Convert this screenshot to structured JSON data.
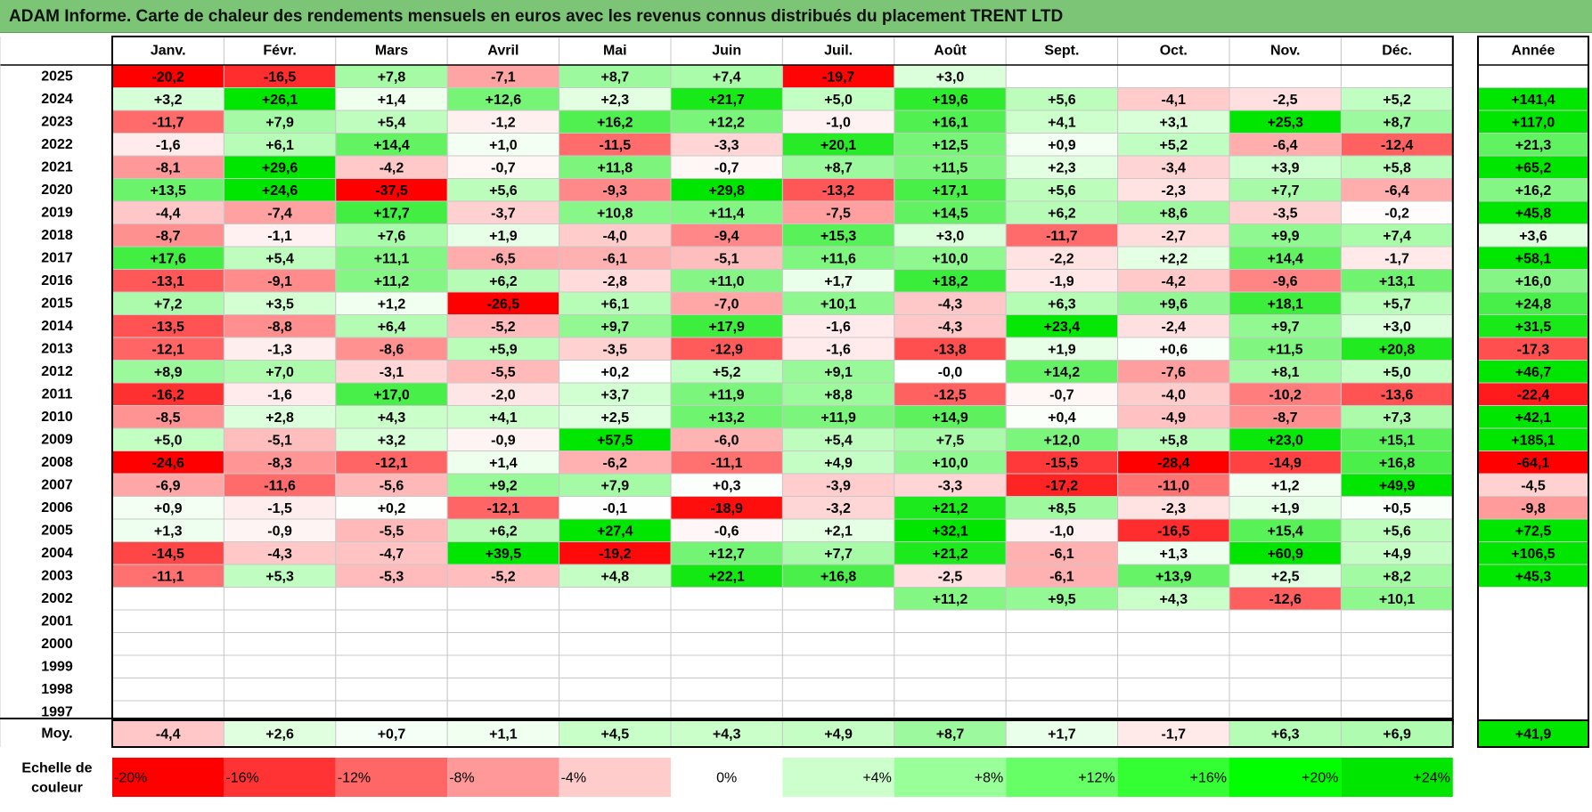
{
  "title": "ADAM Informe. Carte de chaleur des rendements mensuels en euros avec les revenus connus distribués du placement TRENT LTD",
  "chart_data": {
    "type": "heatmap",
    "title": "ADAM Informe. Carte de chaleur des rendements mensuels en euros avec les revenus connus distribués du placement TRENT LTD",
    "columns": [
      "Janv.",
      "Févr.",
      "Mars",
      "Avril",
      "Mai",
      "Juin",
      "Juil.",
      "Août",
      "Sept.",
      "Oct.",
      "Nov.",
      "Déc."
    ],
    "annual_header": "Année",
    "rows": [
      {
        "year": "2025",
        "values": [
          "-20,2",
          "-16,5",
          "+7,8",
          "-7,1",
          "+8,7",
          "+7,4",
          "-19,7",
          "+3,0",
          "",
          "",
          "",
          ""
        ],
        "annual": ""
      },
      {
        "year": "2024",
        "values": [
          "+3,2",
          "+26,1",
          "+1,4",
          "+12,6",
          "+2,3",
          "+21,7",
          "+5,0",
          "+19,6",
          "+5,6",
          "-4,1",
          "-2,5",
          "+5,2"
        ],
        "annual": "+141,4"
      },
      {
        "year": "2023",
        "values": [
          "-11,7",
          "+7,9",
          "+5,4",
          "-1,2",
          "+16,2",
          "+12,2",
          "-1,0",
          "+16,1",
          "+4,1",
          "+3,1",
          "+25,3",
          "+8,7"
        ],
        "annual": "+117,0"
      },
      {
        "year": "2022",
        "values": [
          "-1,6",
          "+6,1",
          "+14,4",
          "+1,0",
          "-11,5",
          "-3,3",
          "+20,1",
          "+12,5",
          "+0,9",
          "+5,2",
          "-6,4",
          "-12,4"
        ],
        "annual": "+21,3"
      },
      {
        "year": "2021",
        "values": [
          "-8,1",
          "+29,6",
          "-4,2",
          "-0,7",
          "+11,8",
          "-0,7",
          "+8,7",
          "+11,5",
          "+2,3",
          "-3,4",
          "+3,9",
          "+5,8"
        ],
        "annual": "+65,2"
      },
      {
        "year": "2020",
        "values": [
          "+13,5",
          "+24,6",
          "-37,5",
          "+5,6",
          "-9,3",
          "+29,8",
          "-13,2",
          "+17,1",
          "+5,6",
          "-2,3",
          "+7,7",
          "-6,4"
        ],
        "annual": "+16,2"
      },
      {
        "year": "2019",
        "values": [
          "-4,4",
          "-7,4",
          "+17,7",
          "-3,7",
          "+10,8",
          "+11,4",
          "-7,5",
          "+14,5",
          "+6,2",
          "+8,6",
          "-3,5",
          "-0,2"
        ],
        "annual": "+45,8"
      },
      {
        "year": "2018",
        "values": [
          "-8,7",
          "-1,1",
          "+7,6",
          "+1,9",
          "-4,0",
          "-9,4",
          "+15,3",
          "+3,0",
          "-11,7",
          "-2,7",
          "+9,9",
          "+7,4"
        ],
        "annual": "+3,6"
      },
      {
        "year": "2017",
        "values": [
          "+17,6",
          "+5,4",
          "+11,1",
          "-6,5",
          "-6,1",
          "-5,1",
          "+11,6",
          "+10,0",
          "-2,2",
          "+2,2",
          "+14,4",
          "-1,7"
        ],
        "annual": "+58,1"
      },
      {
        "year": "2016",
        "values": [
          "-13,1",
          "-9,1",
          "+11,2",
          "+6,2",
          "-2,8",
          "+11,0",
          "+1,7",
          "+18,2",
          "-1,9",
          "-4,2",
          "-9,6",
          "+13,1"
        ],
        "annual": "+16,0"
      },
      {
        "year": "2015",
        "values": [
          "+7,2",
          "+3,5",
          "+1,2",
          "-26,5",
          "+6,1",
          "-7,0",
          "+10,1",
          "-4,3",
          "+6,3",
          "+9,6",
          "+18,1",
          "+5,7"
        ],
        "annual": "+24,8"
      },
      {
        "year": "2014",
        "values": [
          "-13,5",
          "-8,8",
          "+6,4",
          "-5,2",
          "+9,7",
          "+17,9",
          "-1,6",
          "-4,3",
          "+23,4",
          "-2,4",
          "+9,7",
          "+3,0"
        ],
        "annual": "+31,5"
      },
      {
        "year": "2013",
        "values": [
          "-12,1",
          "-1,3",
          "-8,6",
          "+5,9",
          "-3,5",
          "-12,9",
          "-1,6",
          "-13,8",
          "+1,9",
          "+0,6",
          "+11,5",
          "+20,8"
        ],
        "annual": "-17,3"
      },
      {
        "year": "2012",
        "values": [
          "+8,9",
          "+7,0",
          "-3,1",
          "-5,5",
          "+0,2",
          "+5,2",
          "+9,1",
          "-0,0",
          "+14,2",
          "-7,6",
          "+8,1",
          "+5,0"
        ],
        "annual": "+46,7"
      },
      {
        "year": "2011",
        "values": [
          "-16,2",
          "-1,6",
          "+17,0",
          "-2,0",
          "+3,7",
          "+11,9",
          "+8,8",
          "-12,5",
          "-0,7",
          "-4,0",
          "-10,2",
          "-13,6"
        ],
        "annual": "-22,4"
      },
      {
        "year": "2010",
        "values": [
          "-8,5",
          "+2,8",
          "+4,3",
          "+4,1",
          "+2,5",
          "+13,2",
          "+11,9",
          "+14,9",
          "+0,4",
          "-4,9",
          "-8,7",
          "+7,3"
        ],
        "annual": "+42,1"
      },
      {
        "year": "2009",
        "values": [
          "+5,0",
          "-5,1",
          "+3,2",
          "-0,9",
          "+57,5",
          "-6,0",
          "+5,4",
          "+7,5",
          "+12,0",
          "+5,8",
          "+23,0",
          "+15,1"
        ],
        "annual": "+185,1"
      },
      {
        "year": "2008",
        "values": [
          "-24,6",
          "-8,3",
          "-12,1",
          "+1,4",
          "-6,2",
          "-11,1",
          "+4,9",
          "+10,0",
          "-15,5",
          "-28,4",
          "-14,9",
          "+16,8"
        ],
        "annual": "-64,1"
      },
      {
        "year": "2007",
        "values": [
          "-6,9",
          "-11,6",
          "-5,6",
          "+9,2",
          "+7,9",
          "+0,3",
          "-3,9",
          "-3,3",
          "-17,2",
          "-11,0",
          "+1,2",
          "+49,9"
        ],
        "annual": "-4,5"
      },
      {
        "year": "2006",
        "values": [
          "+0,9",
          "-1,5",
          "+0,2",
          "-12,1",
          "-0,1",
          "-18,9",
          "-3,2",
          "+21,2",
          "+8,5",
          "-2,3",
          "+1,9",
          "+0,5"
        ],
        "annual": "-9,8"
      },
      {
        "year": "2005",
        "values": [
          "+1,3",
          "-0,9",
          "-5,5",
          "+6,2",
          "+27,4",
          "-0,6",
          "+2,1",
          "+32,1",
          "-1,0",
          "-16,5",
          "+15,4",
          "+5,6"
        ],
        "annual": "+72,5"
      },
      {
        "year": "2004",
        "values": [
          "-14,5",
          "-4,3",
          "-4,7",
          "+39,5",
          "-19,2",
          "+12,7",
          "+7,7",
          "+21,2",
          "-6,1",
          "+1,3",
          "+60,9",
          "+4,9"
        ],
        "annual": "+106,5"
      },
      {
        "year": "2003",
        "values": [
          "-11,1",
          "+5,3",
          "-5,3",
          "-5,2",
          "+4,8",
          "+22,1",
          "+16,8",
          "-2,5",
          "-6,1",
          "+13,9",
          "+2,5",
          "+8,2"
        ],
        "annual": "+45,3"
      },
      {
        "year": "2002",
        "values": [
          "",
          "",
          "",
          "",
          "",
          "",
          "",
          "+11,2",
          "+9,5",
          "+4,3",
          "-12,6",
          "+10,1"
        ],
        "annual": ""
      },
      {
        "year": "2001",
        "values": [
          "",
          "",
          "",
          "",
          "",
          "",
          "",
          "",
          "",
          "",
          "",
          ""
        ],
        "annual": ""
      },
      {
        "year": "2000",
        "values": [
          "",
          "",
          "",
          "",
          "",
          "",
          "",
          "",
          "",
          "",
          "",
          ""
        ],
        "annual": ""
      },
      {
        "year": "1999",
        "values": [
          "",
          "",
          "",
          "",
          "",
          "",
          "",
          "",
          "",
          "",
          "",
          ""
        ],
        "annual": ""
      },
      {
        "year": "1998",
        "values": [
          "",
          "",
          "",
          "",
          "",
          "",
          "",
          "",
          "",
          "",
          "",
          ""
        ],
        "annual": ""
      },
      {
        "year": "1997",
        "values": [
          "",
          "",
          "",
          "",
          "",
          "",
          "",
          "",
          "",
          "",
          "",
          ""
        ],
        "annual": ""
      }
    ],
    "average": {
      "label": "Moy.",
      "values": [
        "-4,4",
        "+2,6",
        "+0,7",
        "+1,1",
        "+4,5",
        "+4,3",
        "+4,9",
        "+8,7",
        "+1,7",
        "-1,7",
        "+6,3",
        "+6,9"
      ],
      "annual": "+41,9"
    },
    "scale": {
      "label_line1": "Echelle de",
      "label_line2": "couleur",
      "stops": [
        {
          "label": "-20%",
          "value": -20,
          "color": "#ff0000"
        },
        {
          "label": "-16%",
          "value": -16,
          "color": "#ff3333"
        },
        {
          "label": "-12%",
          "value": -12,
          "color": "#ff6666"
        },
        {
          "label": "-8%",
          "value": -8,
          "color": "#ff9999"
        },
        {
          "label": "-4%",
          "value": -4,
          "color": "#ffcccc"
        },
        {
          "label": "0%",
          "value": 0,
          "color": "#ffffff"
        },
        {
          "label": "+4%",
          "value": 4,
          "color": "#ccffcc"
        },
        {
          "label": "+8%",
          "value": 8,
          "color": "#99ff99"
        },
        {
          "label": "+12%",
          "value": 12,
          "color": "#66ff66"
        },
        {
          "label": "+16%",
          "value": 16,
          "color": "#33ff33"
        },
        {
          "label": "+20%",
          "value": 20,
          "color": "#00ff00"
        },
        {
          "label": "+24%",
          "value": 24,
          "color": "#00e600"
        }
      ]
    },
    "colors": {
      "header_bar": "#7cc576",
      "grid_line": "#c8c8c8",
      "border": "#000000"
    }
  }
}
